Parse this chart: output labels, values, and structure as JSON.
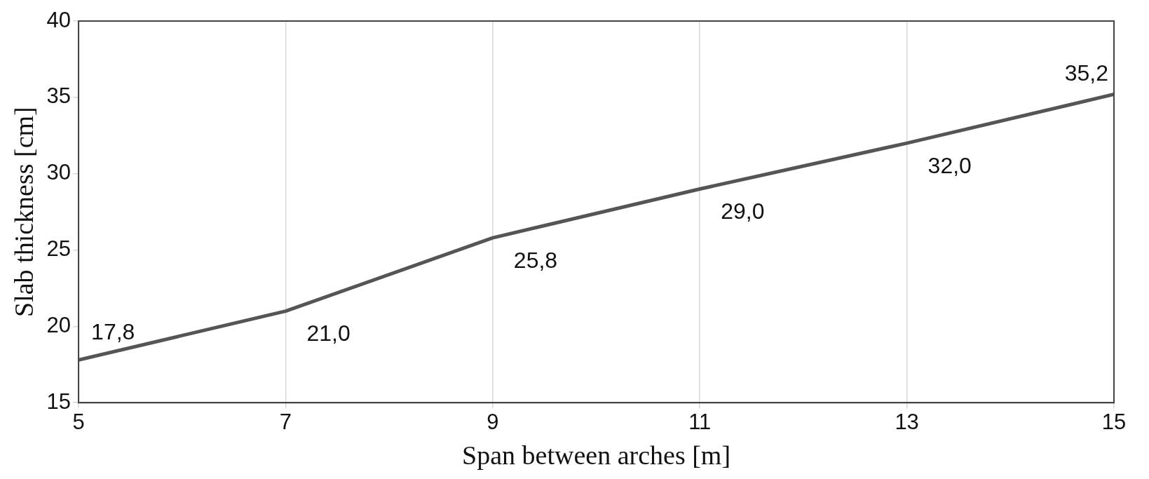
{
  "chart_data": {
    "type": "line",
    "xlabel": "Span between arches [m]",
    "ylabel": "Slab thickness [cm]",
    "x": [
      5,
      7,
      9,
      11,
      13,
      15
    ],
    "series": [
      {
        "color": "#555555",
        "values": [
          17.8,
          21.0,
          25.8,
          29.0,
          32.0,
          35.2
        ],
        "value_labels": [
          "17,8",
          "21,0",
          "25,8",
          "29,0",
          "32,0",
          "35,2"
        ]
      }
    ],
    "xlim": [
      5,
      15
    ],
    "xticks": [
      5,
      7,
      9,
      11,
      13,
      15
    ],
    "ylim": [
      15,
      40
    ],
    "yticks": [
      15,
      20,
      25,
      30,
      35,
      40
    ],
    "grid": "x",
    "legend": false,
    "marker": "none",
    "line_style": "solid"
  }
}
